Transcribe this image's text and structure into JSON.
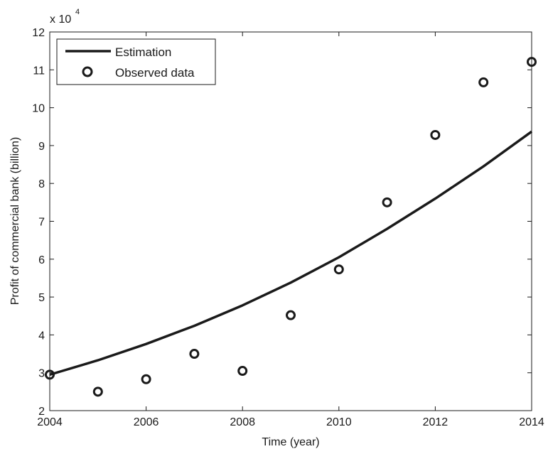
{
  "chart_data": {
    "type": "line",
    "title": "",
    "xlabel": "Time (year)",
    "ylabel": "Profit of commercial bank (billion)",
    "y_multiplier_label": "x 10",
    "y_multiplier_exponent": "4",
    "xlim": [
      2004,
      2014
    ],
    "ylim": [
      2,
      12
    ],
    "x_ticks": [
      2004,
      2006,
      2008,
      2010,
      2012,
      2014
    ],
    "y_ticks": [
      2,
      3,
      4,
      5,
      6,
      7,
      8,
      9,
      10,
      11,
      12
    ],
    "x_tick_labels": [
      "2004",
      "2006",
      "2008",
      "2010",
      "2012",
      "2014"
    ],
    "y_tick_labels": [
      "2",
      "3",
      "4",
      "5",
      "6",
      "7",
      "8",
      "9",
      "10",
      "11",
      "12"
    ],
    "grid": false,
    "legend_position": "top-left",
    "series": [
      {
        "name": "Estimation",
        "style": "line",
        "color": "#1a1a1a",
        "x": [
          2004,
          2005,
          2006,
          2007,
          2008,
          2009,
          2010,
          2011,
          2012,
          2013,
          2014
        ],
        "y": [
          2.95,
          3.33,
          3.76,
          4.24,
          4.78,
          5.38,
          6.05,
          6.8,
          7.6,
          8.45,
          9.37
        ]
      },
      {
        "name": "Observed data",
        "style": "marker",
        "marker": "circle",
        "color": "#1a1a1a",
        "x": [
          2004,
          2005,
          2006,
          2007,
          2008,
          2009,
          2010,
          2011,
          2012,
          2013,
          2014
        ],
        "y": [
          2.95,
          2.5,
          2.83,
          3.5,
          3.05,
          4.52,
          5.73,
          7.5,
          9.28,
          10.67,
          11.21
        ]
      }
    ]
  }
}
